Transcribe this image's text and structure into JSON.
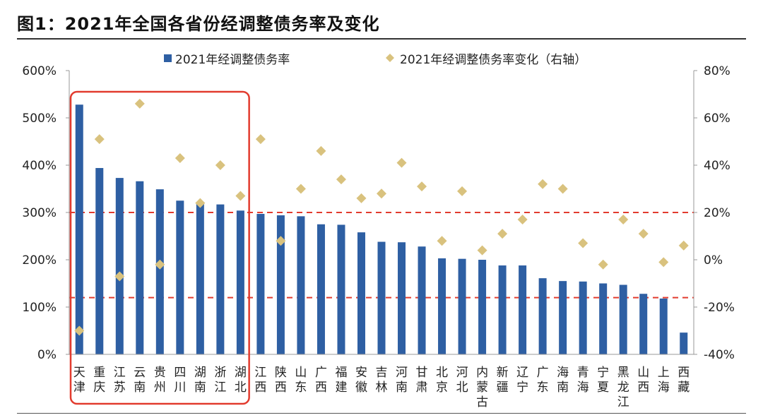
{
  "header": {
    "title": "图1：2021年全国各省份经调整债务率及变化"
  },
  "chart_data": {
    "type": "bar",
    "categories": [
      "天津",
      "重庆",
      "江苏",
      "云南",
      "贵州",
      "四川",
      "湖南",
      "浙江",
      "湖北",
      "江西",
      "陕西",
      "山东",
      "广西",
      "福建",
      "安徽",
      "吉林",
      "河南",
      "甘肃",
      "北京",
      "河北",
      "内蒙古",
      "新疆",
      "辽宁",
      "广东",
      "海南",
      "青海",
      "宁夏",
      "黑龙江",
      "山西",
      "上海",
      "西藏"
    ],
    "series": [
      {
        "name": "2021年经调整债务率",
        "axis": "left",
        "kind": "bar",
        "values": [
          528,
          394,
          373,
          366,
          349,
          325,
          320,
          317,
          304,
          297,
          294,
          292,
          275,
          274,
          258,
          238,
          237,
          228,
          203,
          202,
          200,
          188,
          188,
          161,
          155,
          154,
          150,
          147,
          128,
          118,
          46
        ]
      },
      {
        "name": "2021年经调整债务率变化（右轴）",
        "axis": "right",
        "kind": "scatter",
        "values": [
          -30,
          51,
          -7,
          66,
          -2,
          43,
          24,
          40,
          27,
          51,
          8,
          30,
          46,
          34,
          26,
          28,
          41,
          31,
          8,
          29,
          4,
          11,
          17,
          32,
          30,
          7,
          -2,
          17,
          11,
          -1,
          6
        ]
      }
    ],
    "left_axis": {
      "min": 0,
      "max": 600,
      "step": 100,
      "tick_labels": [
        "0%",
        "100%",
        "200%",
        "300%",
        "400%",
        "500%",
        "600%"
      ]
    },
    "right_axis": {
      "min": -40,
      "max": 80,
      "step": 20,
      "tick_labels": [
        "-40%",
        "-20%",
        "0%",
        "20%",
        "40%",
        "60%",
        "80%"
      ]
    },
    "reference_lines": [
      {
        "axis": "left",
        "value": 300,
        "style": "dashed"
      },
      {
        "axis": "left",
        "value": 120,
        "style": "dashed"
      }
    ],
    "highlight_box": {
      "from_category": "天津",
      "to_category": "湖北"
    },
    "legend": {
      "position": "top-center"
    },
    "colors": {
      "bar": "#2E5FA3",
      "marker": "#D9C27E",
      "reference_line": "#E23B2E",
      "highlight": "#E23B2E"
    }
  }
}
